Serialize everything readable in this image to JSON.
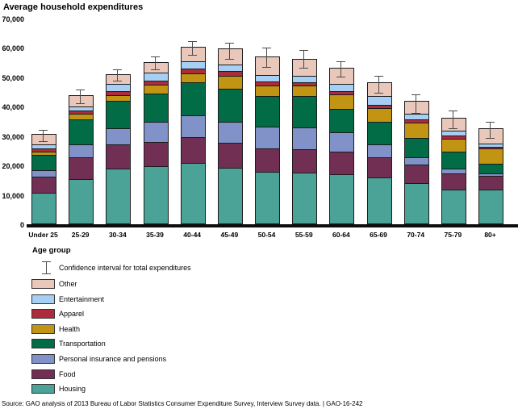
{
  "title": "Average household expenditures",
  "x_axis_label": "Age group",
  "source": "Source: GAO analysis of 2013 Bureau of Labor Statistics Consumer Expenditure Survey, Interview Survey data.  |  GAO-16-242",
  "legend": {
    "ci_label": "Confidence interval for total expenditures",
    "items": [
      {
        "label": "Other",
        "color": "#e9c7ba"
      },
      {
        "label": "Entertainment",
        "color": "#a6cff5"
      },
      {
        "label": "Apparel",
        "color": "#ad2c3c"
      },
      {
        "label": "Health",
        "color": "#c29414"
      },
      {
        "label": "Transportation",
        "color": "#016c45"
      },
      {
        "label": "Personal insurance and pensions",
        "color": "#8092c8"
      },
      {
        "label": "Food",
        "color": "#722f54"
      },
      {
        "label": "Housing",
        "color": "#4aa396"
      }
    ]
  },
  "chart_data": {
    "type": "bar",
    "stacked": true,
    "title": "Average household expenditures",
    "xlabel": "Age group",
    "ylabel": "",
    "ylim": [
      0,
      70000
    ],
    "yticks": [
      0,
      10000,
      20000,
      30000,
      40000,
      50000,
      60000,
      70000
    ],
    "ytick_labels": [
      "0",
      "10,000",
      "20,000",
      "30,000",
      "40,000",
      "50,000",
      "60,000",
      "70,000"
    ],
    "grid": false,
    "legend_position": "bottom-left",
    "categories": [
      "Under 25",
      "25-29",
      "30-34",
      "35-39",
      "40-44",
      "45-49",
      "50-54",
      "55-59",
      "60-64",
      "65-69",
      "70-74",
      "75-79",
      "80+"
    ],
    "series": [
      {
        "name": "Housing",
        "color": "#4aa396",
        "values": [
          10300,
          15200,
          18700,
          19400,
          20700,
          19000,
          17500,
          17300,
          16800,
          15500,
          13700,
          11600,
          11600
        ]
      },
      {
        "name": "Food",
        "color": "#722f54",
        "values": [
          5500,
          7300,
          8200,
          8200,
          8800,
          8400,
          7900,
          7900,
          7700,
          7000,
          6400,
          5500,
          4700
        ]
      },
      {
        "name": "Personal insurance and pensions",
        "color": "#8092c8",
        "values": [
          2300,
          4400,
          5500,
          7000,
          7300,
          7300,
          7600,
          7500,
          6600,
          4400,
          2300,
          1500,
          700
        ]
      },
      {
        "name": "Transportation",
        "color": "#016c45",
        "values": [
          5300,
          8600,
          9300,
          9600,
          11200,
          11100,
          10400,
          10600,
          7900,
          7700,
          6800,
          5800,
          3400
        ]
      },
      {
        "name": "Health",
        "color": "#c29414",
        "values": [
          1000,
          1800,
          1800,
          2900,
          3100,
          4400,
          3500,
          3600,
          4800,
          4600,
          5000,
          4400,
          5000
        ]
      },
      {
        "name": "Apparel",
        "color": "#ad2c3c",
        "values": [
          1000,
          1100,
          1500,
          1500,
          1600,
          1600,
          1400,
          1200,
          1100,
          1200,
          1100,
          1100,
          600
        ]
      },
      {
        "name": "Entertainment",
        "color": "#a6cff5",
        "values": [
          1400,
          1400,
          2500,
          2700,
          2600,
          2200,
          2100,
          2100,
          2500,
          2900,
          2100,
          1800,
          1100
        ]
      },
      {
        "name": "Other",
        "color": "#e9c7ba",
        "values": [
          3500,
          3700,
          3100,
          3400,
          4500,
          5300,
          6100,
          5600,
          5200,
          4500,
          4100,
          3900,
          4900
        ]
      }
    ],
    "totals": [
      30300,
      43500,
      50600,
      54700,
      59800,
      59300,
      56500,
      55800,
      52600,
      47800,
      41500,
      35600,
      32000
    ],
    "confidence_interval": {
      "label": "Confidence interval for total expenditures",
      "low": [
        27900,
        40900,
        48600,
        52500,
        57300,
        55900,
        53200,
        53000,
        50000,
        44500,
        37700,
        32300,
        29100
      ],
      "high": [
        32100,
        45900,
        52700,
        57000,
        62300,
        61800,
        60000,
        59400,
        55500,
        50600,
        44100,
        38800,
        35000
      ]
    }
  }
}
